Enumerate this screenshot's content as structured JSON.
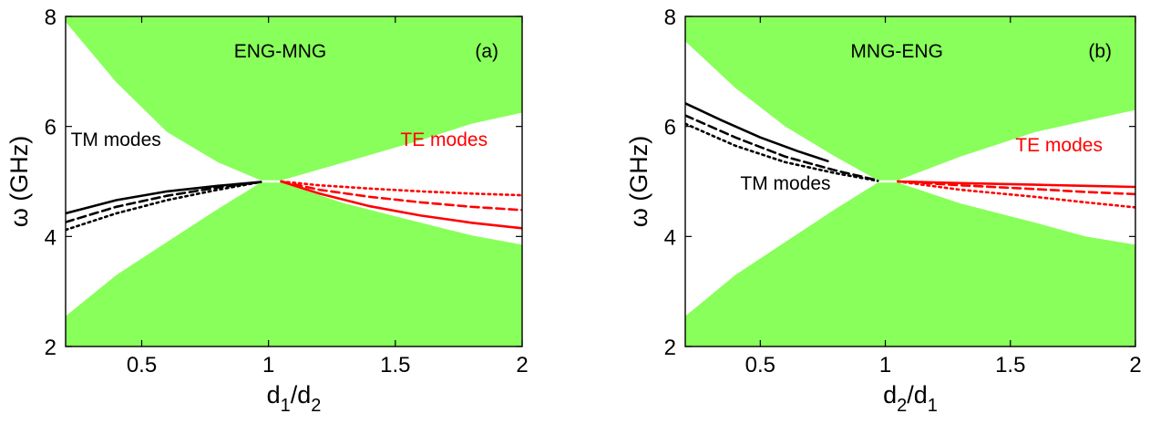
{
  "colors": {
    "gap": "#88ff5a",
    "tm": "#000000",
    "te": "#ff0000"
  },
  "chart_data": [
    {
      "type": "line",
      "panel_label": "(a)",
      "title": "ENG-MNG",
      "xlabel": "d1/d2",
      "xlabel_parts": {
        "a": "d",
        "a_sub": "1",
        "sep": "/d",
        "b_sub": "2"
      },
      "ylabel": "ω (GHz)",
      "xlim": [
        0.2,
        2
      ],
      "ylim": [
        2,
        8
      ],
      "xticks": [
        "0.5",
        "1",
        "1.5",
        "2"
      ],
      "yticks": [
        "2",
        "4",
        "6",
        "8"
      ],
      "annotations": [
        {
          "text": "TM modes",
          "x": 0.22,
          "y": 5.65,
          "color": "tm"
        },
        {
          "text": "TE modes",
          "x": 1.52,
          "y": 5.65,
          "color": "te"
        }
      ],
      "regions": {
        "upper_band_boundary": [
          [
            0.2,
            7.9
          ],
          [
            0.4,
            6.8
          ],
          [
            0.6,
            5.9
          ],
          [
            0.8,
            5.35
          ],
          [
            0.97,
            5.02
          ],
          [
            1.05,
            5.02
          ],
          [
            1.3,
            5.35
          ],
          [
            1.6,
            5.75
          ],
          [
            1.8,
            6.05
          ],
          [
            2.0,
            6.25
          ]
        ],
        "lower_band_boundary": [
          [
            0.2,
            2.55
          ],
          [
            0.4,
            3.3
          ],
          [
            0.6,
            3.9
          ],
          [
            0.8,
            4.5
          ],
          [
            0.97,
            4.98
          ],
          [
            1.05,
            4.98
          ],
          [
            1.3,
            4.6
          ],
          [
            1.6,
            4.25
          ],
          [
            1.8,
            4.02
          ],
          [
            2.0,
            3.85
          ]
        ]
      },
      "series": [
        {
          "group": "TM",
          "style": "solid",
          "values": [
            [
              0.2,
              4.42
            ],
            [
              0.4,
              4.66
            ],
            [
              0.6,
              4.82
            ],
            [
              0.8,
              4.92
            ],
            [
              0.97,
              4.99
            ]
          ]
        },
        {
          "group": "TM",
          "style": "dashed",
          "values": [
            [
              0.2,
              4.26
            ],
            [
              0.4,
              4.54
            ],
            [
              0.6,
              4.74
            ],
            [
              0.8,
              4.89
            ],
            [
              0.97,
              4.99
            ]
          ]
        },
        {
          "group": "TM",
          "style": "dotted",
          "values": [
            [
              0.2,
              4.12
            ],
            [
              0.4,
              4.42
            ],
            [
              0.6,
              4.66
            ],
            [
              0.8,
              4.85
            ],
            [
              0.97,
              4.99
            ]
          ]
        },
        {
          "group": "TE",
          "style": "solid",
          "values": [
            [
              1.05,
              5.0
            ],
            [
              1.2,
              4.78
            ],
            [
              1.4,
              4.55
            ],
            [
              1.6,
              4.38
            ],
            [
              1.8,
              4.25
            ],
            [
              2.0,
              4.15
            ]
          ]
        },
        {
          "group": "TE",
          "style": "dashed",
          "values": [
            [
              1.05,
              5.0
            ],
            [
              1.2,
              4.85
            ],
            [
              1.4,
              4.72
            ],
            [
              1.6,
              4.62
            ],
            [
              1.8,
              4.54
            ],
            [
              2.0,
              4.48
            ]
          ]
        },
        {
          "group": "TE",
          "style": "dotted",
          "values": [
            [
              1.05,
              5.0
            ],
            [
              1.2,
              4.93
            ],
            [
              1.4,
              4.87
            ],
            [
              1.6,
              4.82
            ],
            [
              1.8,
              4.78
            ],
            [
              2.0,
              4.75
            ]
          ]
        }
      ]
    },
    {
      "type": "line",
      "panel_label": "(b)",
      "title": "MNG-ENG",
      "xlabel": "d2/d1",
      "xlabel_parts": {
        "a": "d",
        "a_sub": "2",
        "sep": "/d",
        "b_sub": "1"
      },
      "ylabel": "ω (GHz)",
      "xlim": [
        0.2,
        2
      ],
      "ylim": [
        2,
        8
      ],
      "xticks": [
        "0.5",
        "1",
        "1.5",
        "2"
      ],
      "yticks": [
        "2",
        "4",
        "6",
        "8"
      ],
      "annotations": [
        {
          "text": "TM modes",
          "x": 0.42,
          "y": 4.85,
          "color": "tm"
        },
        {
          "text": "TE modes",
          "x": 1.52,
          "y": 5.55,
          "color": "te"
        }
      ],
      "regions": {
        "upper_band_boundary": [
          [
            0.2,
            7.55
          ],
          [
            0.4,
            6.7
          ],
          [
            0.6,
            6.0
          ],
          [
            0.8,
            5.45
          ],
          [
            0.97,
            5.02
          ],
          [
            1.05,
            5.02
          ],
          [
            1.3,
            5.45
          ],
          [
            1.6,
            5.9
          ],
          [
            1.8,
            6.1
          ],
          [
            2.0,
            6.3
          ]
        ],
        "lower_band_boundary": [
          [
            0.2,
            2.55
          ],
          [
            0.4,
            3.3
          ],
          [
            0.6,
            3.9
          ],
          [
            0.8,
            4.5
          ],
          [
            0.97,
            4.98
          ],
          [
            1.05,
            4.98
          ],
          [
            1.3,
            4.6
          ],
          [
            1.6,
            4.25
          ],
          [
            1.8,
            4.0
          ],
          [
            2.0,
            3.85
          ]
        ]
      },
      "series": [
        {
          "group": "TM",
          "style": "solid",
          "values": [
            [
              0.2,
              6.42
            ],
            [
              0.35,
              6.1
            ],
            [
              0.5,
              5.8
            ],
            [
              0.65,
              5.55
            ],
            [
              0.77,
              5.37
            ]
          ]
        },
        {
          "group": "TM",
          "style": "dashed",
          "values": [
            [
              0.2,
              6.2
            ],
            [
              0.4,
              5.8
            ],
            [
              0.6,
              5.45
            ],
            [
              0.8,
              5.2
            ],
            [
              0.97,
              5.02
            ]
          ]
        },
        {
          "group": "TM",
          "style": "dotted",
          "values": [
            [
              0.2,
              6.05
            ],
            [
              0.4,
              5.65
            ],
            [
              0.6,
              5.35
            ],
            [
              0.8,
              5.15
            ],
            [
              0.97,
              5.01
            ]
          ]
        },
        {
          "group": "TE",
          "style": "solid",
          "values": [
            [
              1.05,
              5.0
            ],
            [
              1.3,
              4.97
            ],
            [
              1.6,
              4.94
            ],
            [
              1.8,
              4.92
            ],
            [
              2.0,
              4.9
            ]
          ]
        },
        {
          "group": "TE",
          "style": "dashed",
          "values": [
            [
              1.05,
              5.0
            ],
            [
              1.3,
              4.93
            ],
            [
              1.6,
              4.86
            ],
            [
              1.8,
              4.81
            ],
            [
              2.0,
              4.77
            ]
          ]
        },
        {
          "group": "TE",
          "style": "dotted",
          "values": [
            [
              1.05,
              5.0
            ],
            [
              1.3,
              4.85
            ],
            [
              1.6,
              4.72
            ],
            [
              1.8,
              4.62
            ],
            [
              2.0,
              4.53
            ]
          ]
        }
      ]
    }
  ]
}
